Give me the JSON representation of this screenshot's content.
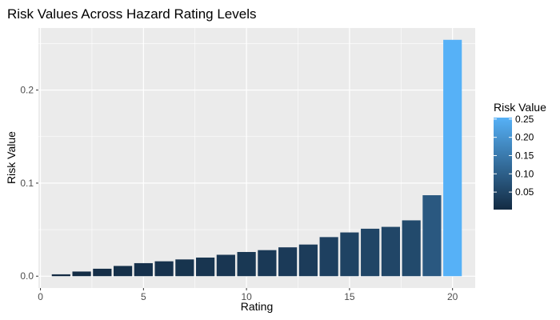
{
  "chart_data": {
    "type": "bar",
    "title": "Risk Values Across Hazard Rating Levels",
    "xlabel": "Rating",
    "ylabel": "Risk Value",
    "x": [
      1,
      2,
      3,
      4,
      5,
      6,
      7,
      8,
      9,
      10,
      11,
      12,
      13,
      14,
      15,
      16,
      17,
      18,
      19,
      20
    ],
    "values": [
      0.002,
      0.005,
      0.008,
      0.011,
      0.014,
      0.016,
      0.018,
      0.02,
      0.023,
      0.026,
      0.028,
      0.031,
      0.034,
      0.042,
      0.047,
      0.051,
      0.053,
      0.06,
      0.087,
      0.254
    ],
    "xlim": [
      -0.1,
      21.1
    ],
    "ylim": [
      -0.0127,
      0.2667
    ],
    "x_ticks": [
      0,
      5,
      10,
      15,
      20
    ],
    "x_tick_labels": [
      "0",
      "5",
      "10",
      "15",
      "20"
    ],
    "y_ticks": [
      0.0,
      0.1,
      0.2
    ],
    "y_tick_labels": [
      "0.0",
      "0.1",
      "0.2"
    ],
    "grid": true,
    "legend": {
      "title": "Risk Value",
      "placement": "right",
      "type": "colorbar",
      "ticks": [
        0.05,
        0.1,
        0.15,
        0.2,
        0.25
      ],
      "tick_labels": [
        "0.05",
        "0.10",
        "0.15",
        "0.20",
        "0.25"
      ],
      "range": [
        0.002,
        0.254
      ],
      "color_low": "#132B43",
      "color_high": "#56B1F7"
    },
    "colors": {
      "panel_background": "#ebebeb",
      "gridline": "#ffffff",
      "tick_text": "#4d4d4d",
      "tick_mark": "#333333"
    }
  }
}
